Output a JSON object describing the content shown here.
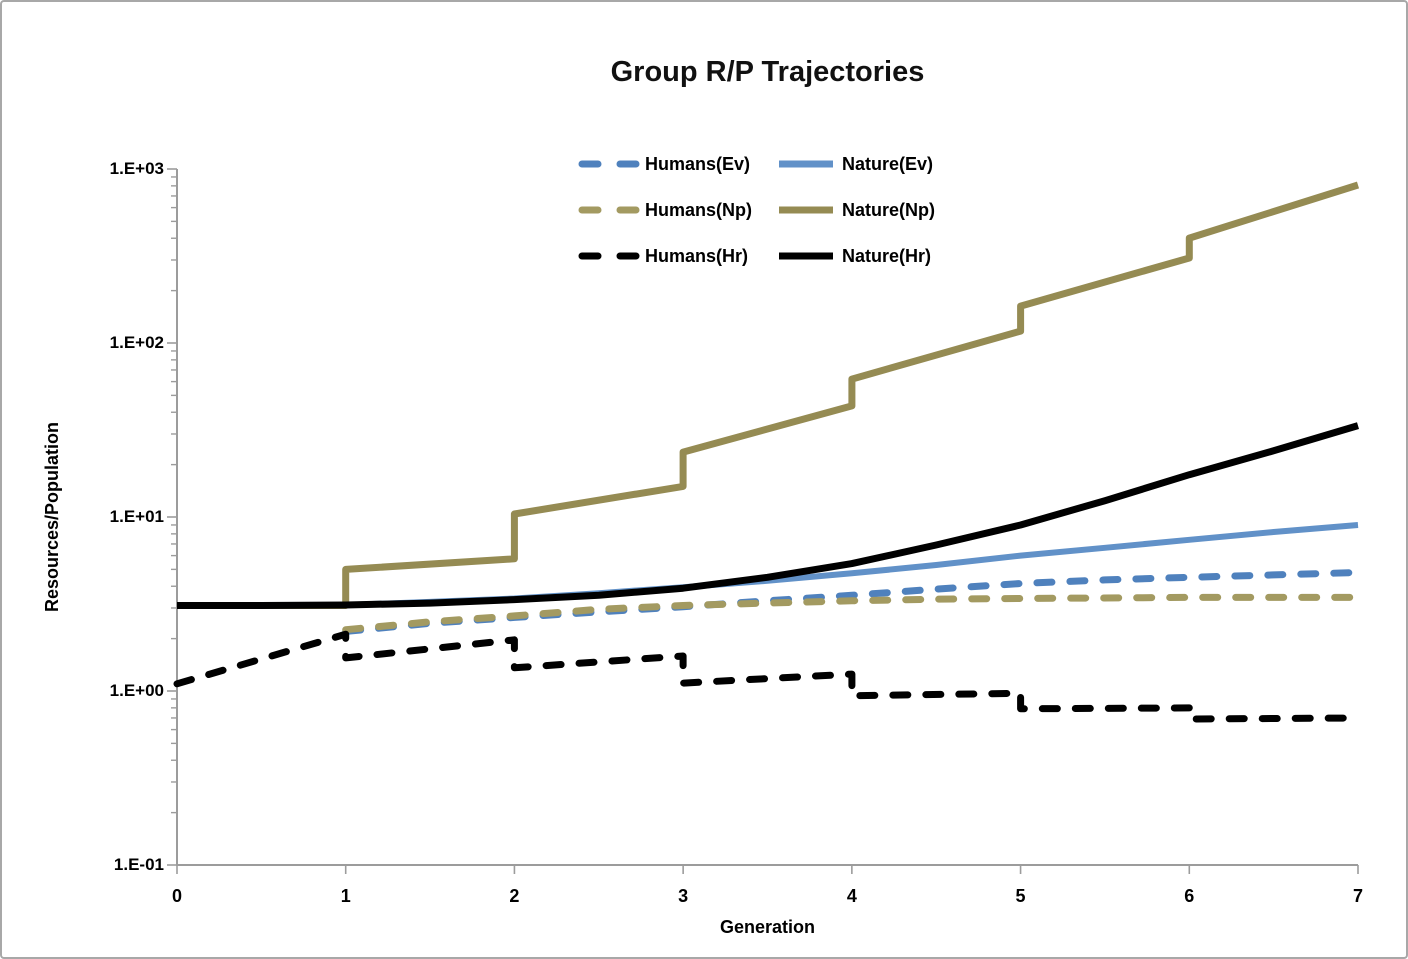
{
  "chart_data": {
    "type": "line",
    "title": "Group R/P Trajectories",
    "xlabel": "Generation",
    "ylabel": "Resources/Population",
    "y_scale": "log",
    "xlim": [
      0,
      7
    ],
    "ylim": [
      0.1,
      1000
    ],
    "grid": "off",
    "legend_position": "top-center",
    "axis_color": "#9c9c9c",
    "x_ticks": [
      {
        "label": "0",
        "value": 0
      },
      {
        "label": "1",
        "value": 1
      },
      {
        "label": "2",
        "value": 2
      },
      {
        "label": "3",
        "value": 3
      },
      {
        "label": "4",
        "value": 4
      },
      {
        "label": "5",
        "value": 5
      },
      {
        "label": "6",
        "value": 6
      },
      {
        "label": "7",
        "value": 7
      }
    ],
    "y_ticks": [
      {
        "label": "1.E+03",
        "value": 1000
      },
      {
        "label": "1.E+02",
        "value": 100
      },
      {
        "label": "1.E+01",
        "value": 10
      },
      {
        "label": "1.E+00",
        "value": 1
      },
      {
        "label": "1.E-01",
        "value": 0.1
      }
    ],
    "series": [
      {
        "key": "humans-ev",
        "name": "Humans(Ev)",
        "color": "#4F81BD",
        "style": "dashed",
        "width": 7,
        "points": [
          [
            1,
            2.2
          ],
          [
            1.5,
            2.45
          ],
          [
            2,
            2.65
          ],
          [
            2.5,
            2.85
          ],
          [
            3,
            3.05
          ],
          [
            3.5,
            3.3
          ],
          [
            4,
            3.55
          ],
          [
            4.5,
            3.85
          ],
          [
            5,
            4.15
          ],
          [
            5.5,
            4.35
          ],
          [
            6,
            4.5
          ],
          [
            6.5,
            4.65
          ],
          [
            7,
            4.8
          ]
        ]
      },
      {
        "key": "humans-np",
        "name": "Humans(Np)",
        "color": "#A39A61",
        "style": "dashed",
        "width": 7,
        "points": [
          [
            1,
            2.25
          ],
          [
            1.5,
            2.5
          ],
          [
            2,
            2.7
          ],
          [
            2.5,
            2.95
          ],
          [
            3,
            3.1
          ],
          [
            3.5,
            3.2
          ],
          [
            4,
            3.3
          ],
          [
            4.5,
            3.37
          ],
          [
            5,
            3.4
          ],
          [
            6,
            3.45
          ],
          [
            7,
            3.45
          ]
        ]
      },
      {
        "key": "nature-ev",
        "name": "Nature(Ev)",
        "color": "#6191C8",
        "style": "solid",
        "width": 6,
        "points": [
          [
            0,
            3.1
          ],
          [
            0.5,
            3.1
          ],
          [
            1,
            3.12
          ],
          [
            1.5,
            3.25
          ],
          [
            2,
            3.4
          ],
          [
            2.5,
            3.65
          ],
          [
            3,
            3.95
          ],
          [
            3.5,
            4.3
          ],
          [
            4,
            4.75
          ],
          [
            4.5,
            5.3
          ],
          [
            5,
            6.0
          ],
          [
            5.5,
            6.65
          ],
          [
            6,
            7.4
          ],
          [
            6.5,
            8.2
          ],
          [
            7,
            9.0
          ]
        ]
      },
      {
        "key": "nature-np",
        "name": "Nature(Np)",
        "color": "#958B53",
        "style": "solid",
        "width": 7,
        "points": [
          [
            0,
            3.1
          ],
          [
            1,
            3.1
          ],
          [
            1,
            5.0
          ],
          [
            2,
            5.75
          ],
          [
            2,
            10.4
          ],
          [
            3,
            15.0
          ],
          [
            3,
            23.6
          ],
          [
            4,
            43.5
          ],
          [
            4,
            62
          ],
          [
            5,
            117
          ],
          [
            5,
            163
          ],
          [
            6,
            308
          ],
          [
            6,
            401
          ],
          [
            7,
            809
          ]
        ]
      },
      {
        "key": "nature-hr",
        "name": "Nature(Hr)",
        "color": "#000000",
        "style": "solid",
        "width": 7,
        "points": [
          [
            0,
            3.1
          ],
          [
            0.5,
            3.1
          ],
          [
            1,
            3.12
          ],
          [
            1.5,
            3.2
          ],
          [
            2,
            3.35
          ],
          [
            2.5,
            3.55
          ],
          [
            3,
            3.9
          ],
          [
            3.5,
            4.5
          ],
          [
            4,
            5.4
          ],
          [
            4.5,
            6.9
          ],
          [
            5,
            9.0
          ],
          [
            5.5,
            12.4
          ],
          [
            6,
            17.5
          ],
          [
            6.5,
            24
          ],
          [
            7,
            33.5
          ]
        ]
      },
      {
        "key": "humans-hr",
        "name": "Humans(Hr)",
        "color": "#000000",
        "style": "dashed",
        "width": 7,
        "points": [
          [
            0,
            1.1
          ],
          [
            1,
            2.12
          ],
          [
            1,
            1.55
          ],
          [
            2,
            1.97
          ],
          [
            2,
            1.36
          ],
          [
            3,
            1.59
          ],
          [
            3,
            1.11
          ],
          [
            4,
            1.25
          ],
          [
            4,
            0.94
          ],
          [
            5,
            0.97
          ],
          [
            5,
            0.79
          ],
          [
            6,
            0.8
          ],
          [
            6,
            0.69
          ],
          [
            7,
            0.7
          ]
        ]
      }
    ],
    "legend": [
      {
        "label": "Humans(Ev)",
        "series": "humans-ev"
      },
      {
        "label": "Nature(Ev)",
        "series": "nature-ev"
      },
      {
        "label": "Humans(Np)",
        "series": "humans-np"
      },
      {
        "label": "Nature(Np)",
        "series": "nature-np"
      },
      {
        "label": "Humans(Hr)",
        "series": "humans-hr"
      },
      {
        "label": "Nature(Hr)",
        "series": "nature-hr"
      }
    ]
  }
}
